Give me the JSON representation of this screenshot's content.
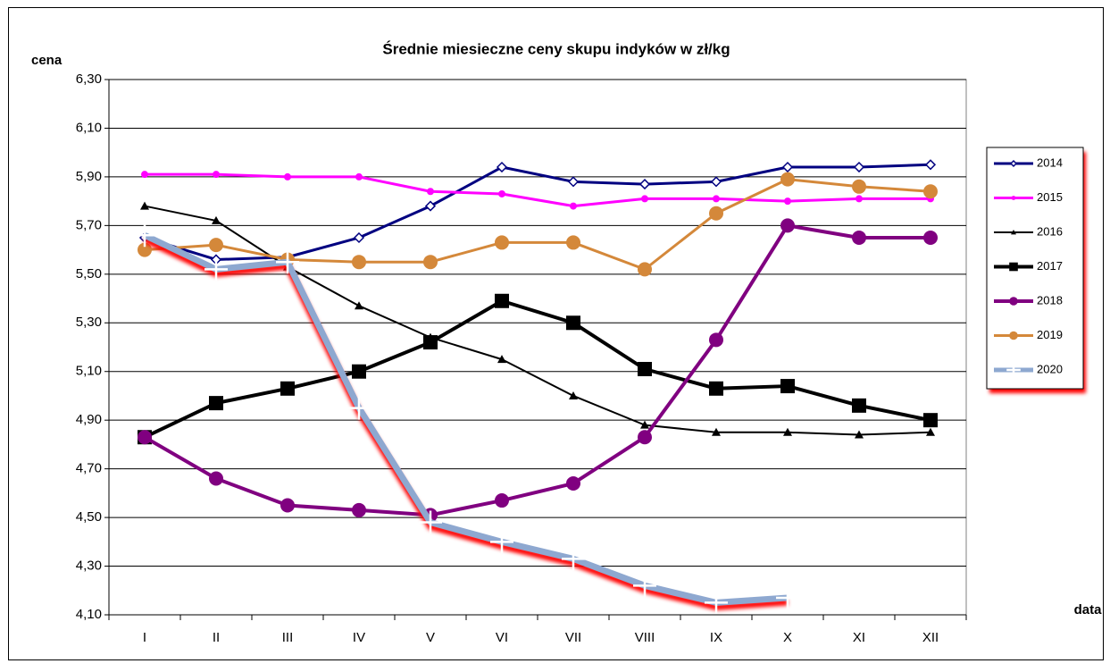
{
  "chart_data": {
    "type": "line",
    "title": "Średnie miesieczne ceny skupu indyków  w zł/kg",
    "y_label": "cena",
    "x_label": "data",
    "categories": [
      "I",
      "II",
      "III",
      "IV",
      "V",
      "VI",
      "VII",
      "VIII",
      "IX",
      "X",
      "XI",
      "XII"
    ],
    "ylim": [
      4.1,
      6.3
    ],
    "yticks": [
      {
        "value": 4.1,
        "label": "4,10"
      },
      {
        "value": 4.3,
        "label": "4,30"
      },
      {
        "value": 4.5,
        "label": "4,50"
      },
      {
        "value": 4.7,
        "label": "4,70"
      },
      {
        "value": 4.9,
        "label": "4,90"
      },
      {
        "value": 5.1,
        "label": "5,10"
      },
      {
        "value": 5.3,
        "label": "5,30"
      },
      {
        "value": 5.5,
        "label": "5,50"
      },
      {
        "value": 5.7,
        "label": "5,70"
      },
      {
        "value": 5.9,
        "label": "5,90"
      },
      {
        "value": 6.1,
        "label": "6,10"
      },
      {
        "value": 6.3,
        "label": "6,30"
      }
    ],
    "grid": true,
    "legend": "right",
    "series": [
      {
        "name": "2014",
        "color": "#000080",
        "marker": "diamond",
        "line_width": 3,
        "values": [
          5.65,
          5.56,
          5.57,
          5.65,
          5.78,
          5.94,
          5.88,
          5.87,
          5.88,
          5.94,
          5.94,
          5.95
        ]
      },
      {
        "name": "2015",
        "color": "#ff00ff",
        "marker": "circle-small",
        "line_width": 3,
        "values": [
          5.91,
          5.91,
          5.9,
          5.9,
          5.84,
          5.83,
          5.78,
          5.81,
          5.81,
          5.8,
          5.81,
          5.81
        ]
      },
      {
        "name": "2016",
        "color": "#000000",
        "marker": "triangle",
        "line_width": 2,
        "values": [
          5.78,
          5.72,
          5.53,
          5.37,
          5.24,
          5.15,
          5.0,
          4.88,
          4.85,
          4.85,
          4.84,
          4.85
        ]
      },
      {
        "name": "2017",
        "color": "#000000",
        "marker": "square",
        "line_width": 4,
        "values": [
          4.83,
          4.97,
          5.03,
          5.1,
          5.22,
          5.39,
          5.3,
          5.11,
          5.03,
          5.04,
          4.96,
          4.9
        ]
      },
      {
        "name": "2018",
        "color": "#800080",
        "marker": "circle",
        "line_width": 4,
        "values": [
          4.83,
          4.66,
          4.55,
          4.53,
          4.51,
          4.57,
          4.64,
          4.83,
          5.23,
          5.7,
          5.65,
          5.65
        ]
      },
      {
        "name": "2019",
        "color": "#d4883a",
        "marker": "circle",
        "line_width": 3,
        "values": [
          5.6,
          5.62,
          5.56,
          5.55,
          5.55,
          5.63,
          5.63,
          5.52,
          5.75,
          5.89,
          5.86,
          5.84
        ]
      },
      {
        "name": "2020",
        "color": "#8ea8d0",
        "marker": "plus",
        "line_width": 7,
        "shadow": "#ff0000",
        "values": [
          5.66,
          5.52,
          5.55,
          4.95,
          4.48,
          4.4,
          4.33,
          4.22,
          4.15,
          4.17,
          null,
          null
        ]
      }
    ]
  }
}
